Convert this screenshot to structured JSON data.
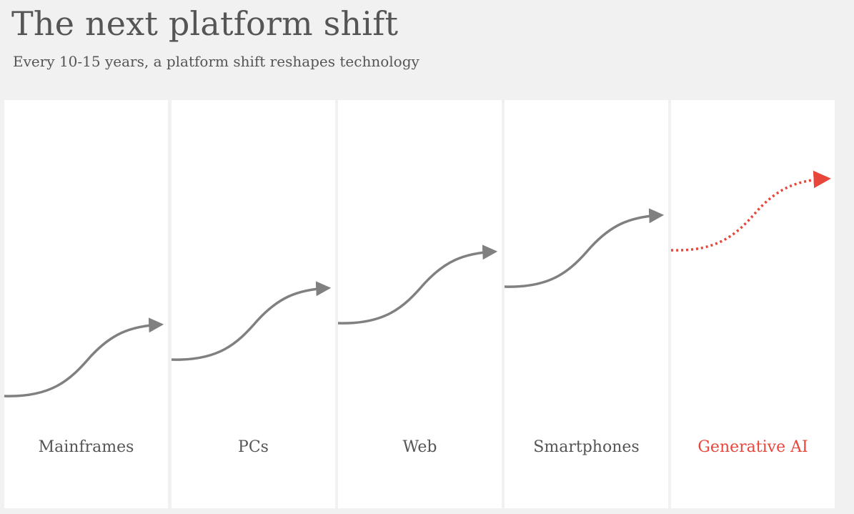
{
  "title": "The next platform shift",
  "subtitle": "Every 10-15 years, a platform shift reshapes technology",
  "colors": {
    "background": "#f1f1f1",
    "panel": "#ffffff",
    "text": "#555555",
    "curve": "#808080",
    "highlight": "#e8463a"
  },
  "platforms": [
    {
      "label": "Mainframes",
      "highlight": false
    },
    {
      "label": "PCs",
      "highlight": false
    },
    {
      "label": "Web",
      "highlight": false
    },
    {
      "label": "Smartphones",
      "highlight": false
    },
    {
      "label": "Generative AI",
      "highlight": true
    }
  ]
}
